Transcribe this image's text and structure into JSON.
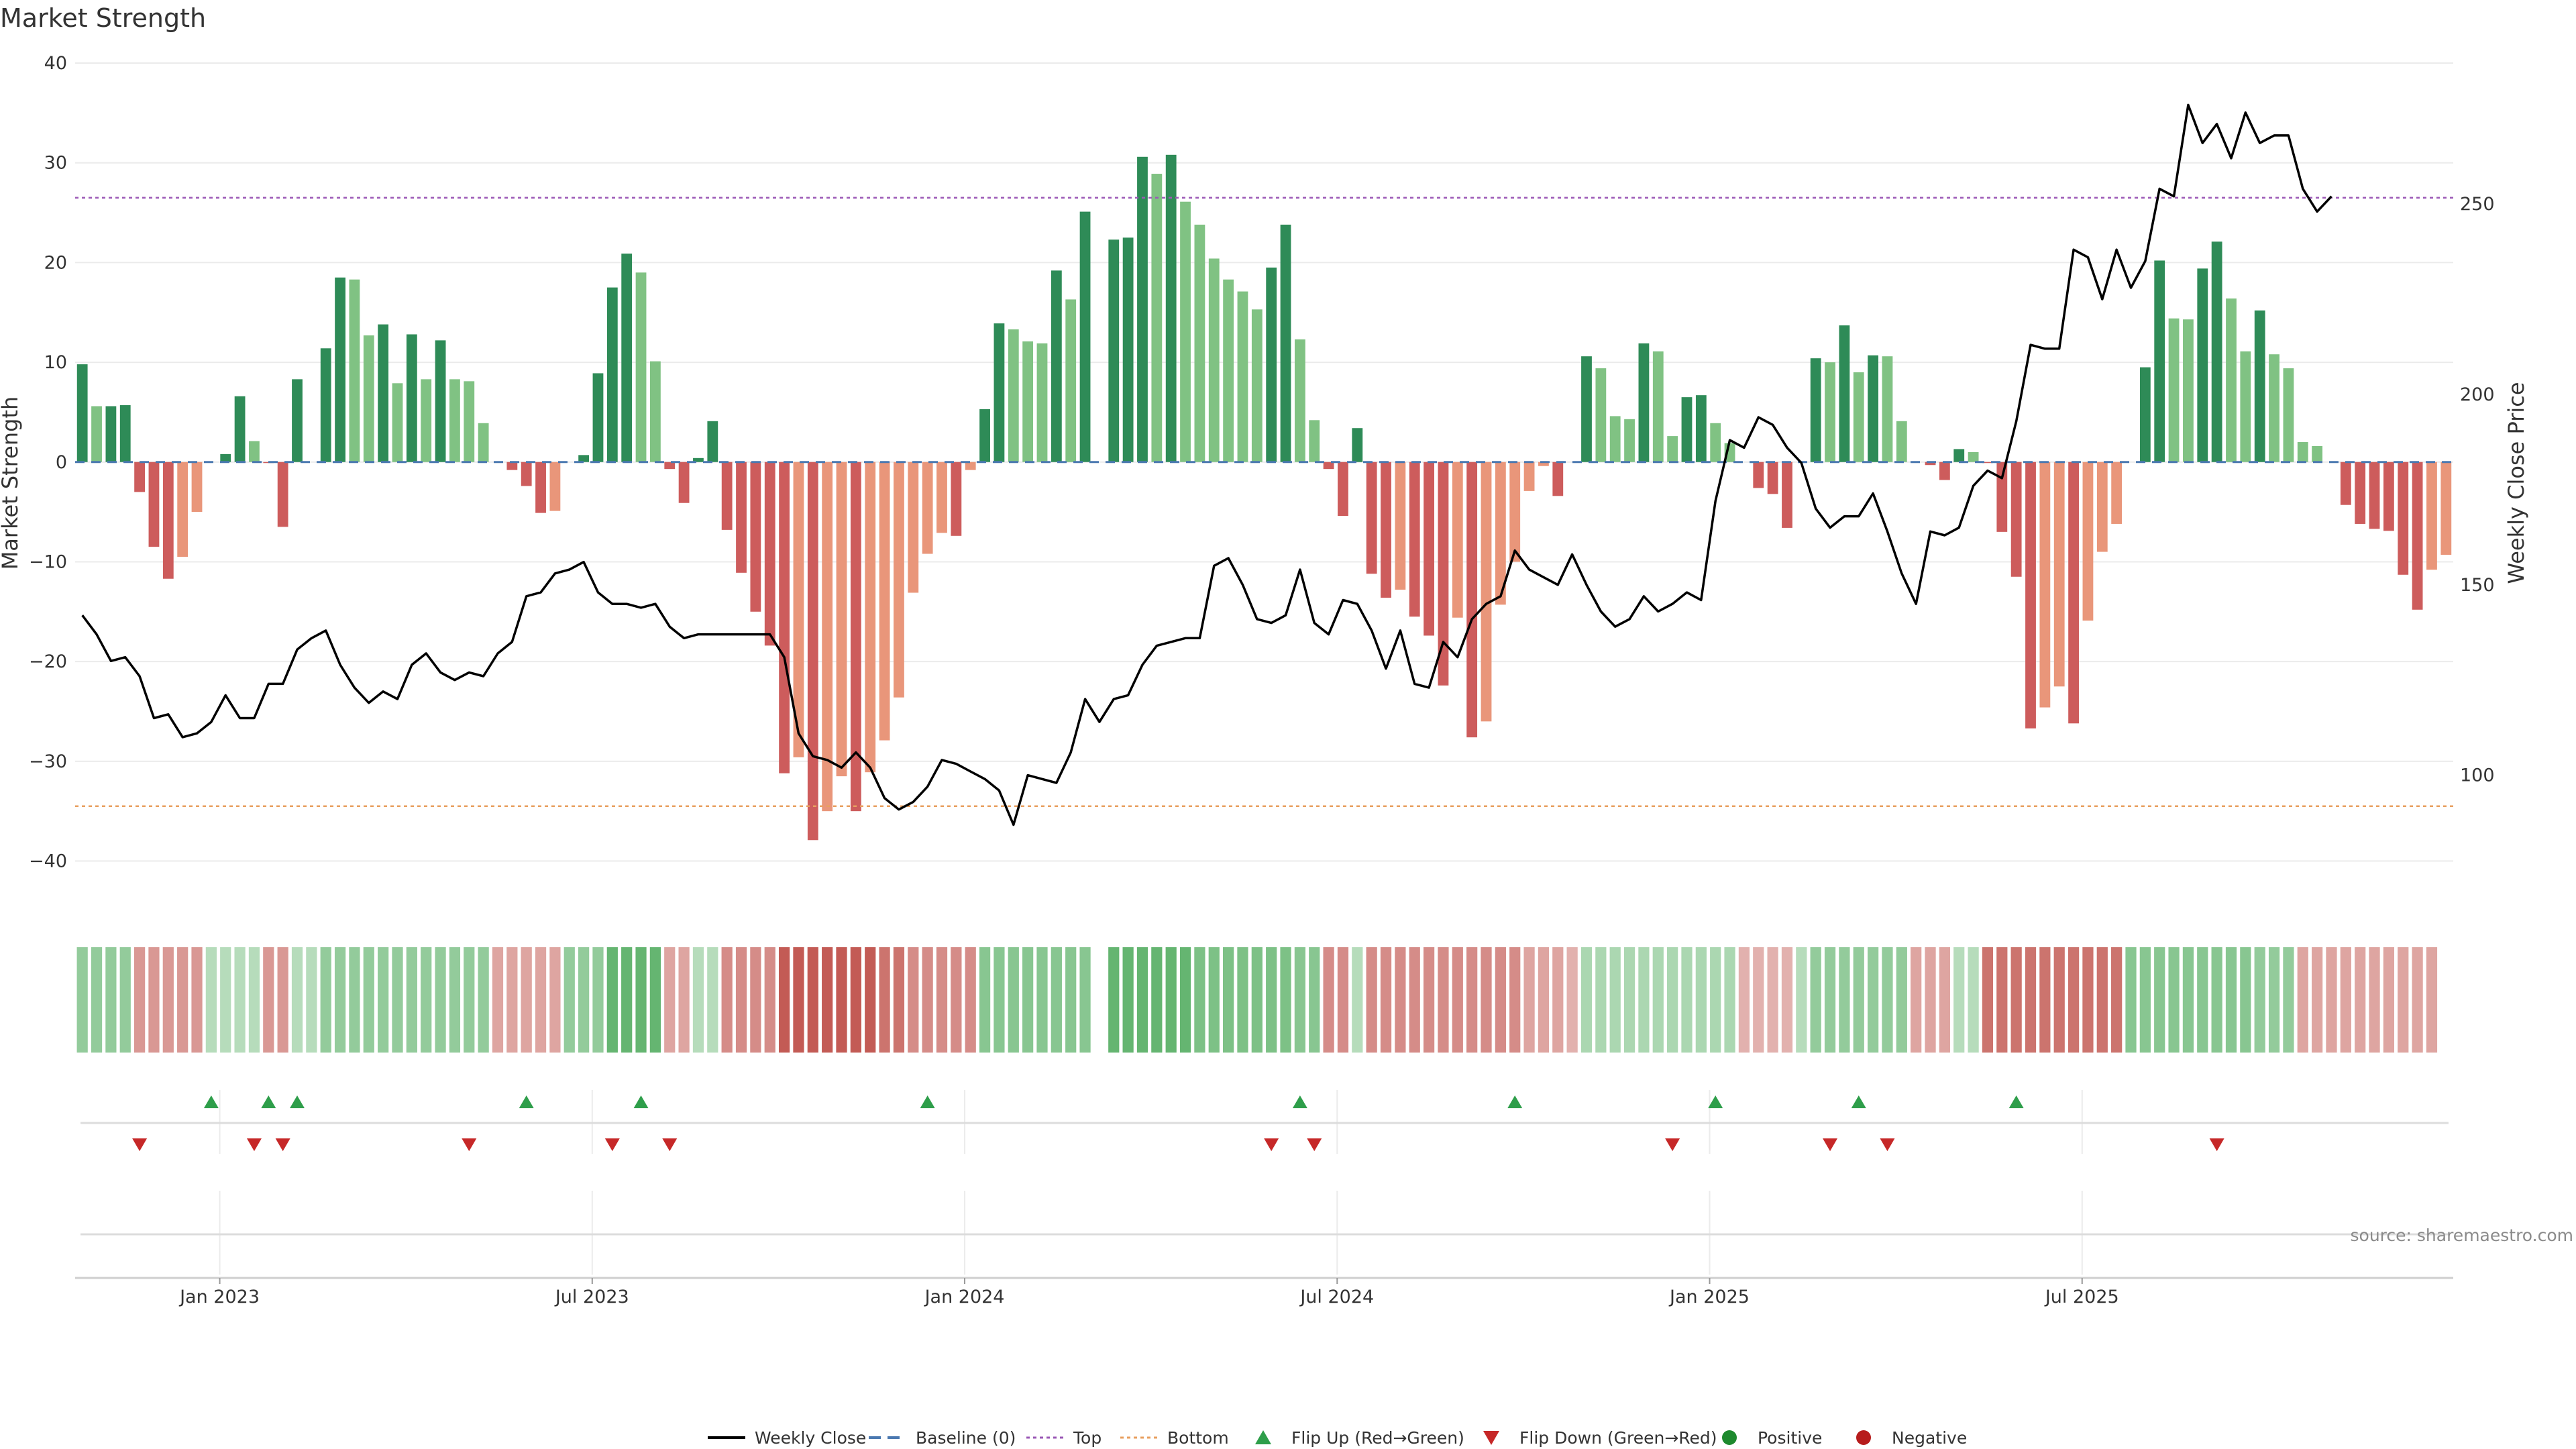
{
  "chart_data": {
    "type": "bar",
    "title": "Market Strength",
    "ylabel": "Market Strength",
    "y2label": "Weekly Close Price",
    "ylim": [
      -44,
      40
    ],
    "y2lim": [
      67,
      287
    ],
    "yticks": [
      40,
      30,
      20,
      10,
      0,
      -10,
      -20,
      -30,
      -40
    ],
    "y2ticks": [
      250,
      200,
      150,
      100
    ],
    "top_level": 26.5,
    "bottom_level": -34.5,
    "x_labels": [
      "Jan 2023",
      "Jul 2023",
      "Jan 2024",
      "Jul 2024",
      "Jan 2025",
      "Jul 2025"
    ],
    "x_label_weeks": [
      10,
      36,
      62,
      88,
      114,
      140
    ],
    "series": [
      {
        "name": "Market Strength",
        "values": [
          9.8,
          5.6,
          5.6,
          5.7,
          -3,
          -8.5,
          -11.7,
          -9.5,
          -5,
          0,
          0.8,
          6.6,
          2.1,
          -0.1,
          -6.5,
          8.3,
          0,
          11.4,
          18.5,
          18.3,
          12.7,
          13.8,
          7.9,
          12.8,
          8.3,
          12.2,
          8.3,
          8.1,
          3.9,
          0,
          -0.8,
          -2.4,
          -5.1,
          -4.9,
          0,
          0.7,
          8.9,
          17.5,
          20.9,
          19,
          10.1,
          -0.7,
          -4.1,
          0.4,
          4.1,
          -6.8,
          -11.1,
          -15,
          -18.4,
          -31.2,
          -29.6,
          -37.9,
          -35,
          -31.5,
          -35,
          -31.1,
          -27.9,
          -23.6,
          -13.1,
          -9.2,
          -7.1,
          -7.4,
          -0.8,
          5.3,
          13.9,
          13.3,
          12.1,
          11.9,
          19.2,
          16.3,
          25.1,
          0,
          22.3,
          22.5,
          30.6,
          28.9,
          30.8,
          26.1,
          23.8,
          20.4,
          18.3,
          17.1,
          15.3,
          19.5,
          23.8,
          12.3,
          4.2,
          -0.7,
          -5.4,
          3.4,
          -11.2,
          -13.6,
          -12.8,
          -15.5,
          -17.4,
          -22.4,
          -15.6,
          -27.6,
          -26,
          -14.3,
          -10,
          -2.9,
          -0.4,
          -3.4,
          0,
          10.6,
          9.4,
          4.6,
          4.3,
          11.9,
          11.1,
          2.6,
          6.5,
          6.7,
          3.9,
          1.9,
          0,
          -2.6,
          -3.2,
          -6.6,
          0,
          10.4,
          10,
          13.7,
          9,
          10.7,
          10.6,
          4.1,
          0,
          -0.3,
          -1.8,
          1.3,
          1,
          -0.1,
          -7,
          -11.5,
          -26.7,
          -24.6,
          -22.5,
          -26.2,
          -15.9,
          -9,
          -6.2,
          0,
          9.5,
          20.2,
          14.4,
          14.3,
          19.4,
          22.1,
          16.4,
          11.1,
          15.2,
          10.8,
          9.4,
          2,
          1.6,
          0,
          -4.3,
          -6.2,
          -6.7,
          -6.9,
          -11.3,
          -14.8,
          -10.8,
          -9.3
        ]
      },
      {
        "name": "Weekly Close",
        "axis": "secondary",
        "values": [
          142,
          137,
          130,
          131,
          126,
          115,
          116,
          110,
          111,
          114,
          121,
          115,
          115,
          124,
          124,
          133,
          136,
          138,
          129,
          123,
          119,
          122,
          120,
          129,
          132,
          127,
          125,
          127,
          126,
          132,
          135,
          147,
          148,
          153,
          154,
          156,
          148,
          145,
          145,
          144,
          145,
          139,
          136,
          137,
          137,
          137,
          137,
          137,
          137,
          131,
          111,
          105,
          104,
          102,
          106,
          102,
          94,
          91,
          93,
          97,
          104,
          103,
          101,
          99,
          96,
          87,
          100,
          99,
          98,
          106,
          120,
          114,
          120,
          121,
          129,
          134,
          135,
          136,
          136,
          155,
          157,
          150,
          141,
          140,
          142,
          154,
          140,
          137,
          146,
          145,
          138,
          128,
          138,
          124,
          123,
          135,
          131,
          141,
          145,
          147,
          159,
          154,
          152,
          150,
          158,
          150,
          143,
          139,
          141,
          147,
          143,
          145,
          148,
          146,
          172,
          188,
          186,
          194,
          192,
          186,
          182,
          170,
          165,
          168,
          168,
          174,
          164,
          153,
          145,
          164,
          163,
          165,
          176,
          180,
          178,
          193,
          213,
          212,
          212,
          238,
          236,
          225,
          238,
          228,
          235,
          254,
          252,
          276,
          266,
          271,
          262,
          274,
          266,
          268,
          268,
          254,
          248,
          252
        ]
      }
    ],
    "strength_strip": [
      0.6,
      0.6,
      0.6,
      0.6,
      -0.5,
      -0.5,
      -0.5,
      -0.5,
      -0.5,
      0.3,
      0.3,
      0.3,
      0.3,
      -0.5,
      -0.5,
      0.3,
      0.3,
      0.6,
      0.6,
      0.6,
      0.6,
      0.6,
      0.6,
      0.6,
      0.6,
      0.6,
      0.6,
      0.6,
      0.6,
      -0.4,
      -0.4,
      -0.4,
      -0.4,
      -0.4,
      0.6,
      0.6,
      0.6,
      1,
      1,
      1,
      1,
      -0.4,
      -0.4,
      0.3,
      0.3,
      -0.6,
      -0.6,
      -0.6,
      -0.6,
      -1,
      -1,
      -1,
      -1,
      -1,
      -1,
      -1,
      -0.8,
      -0.8,
      -0.6,
      -0.6,
      -0.6,
      -0.6,
      -0.6,
      0.7,
      0.7,
      0.7,
      0.7,
      0.7,
      0.7,
      0.7,
      0.7,
      0,
      1,
      1,
      1,
      1,
      1,
      1,
      0.8,
      0.8,
      0.8,
      0.8,
      0.8,
      0.8,
      0.8,
      0.7,
      0.7,
      -0.6,
      -0.6,
      0.3,
      -0.6,
      -0.6,
      -0.6,
      -0.6,
      -0.6,
      -0.6,
      -0.6,
      -0.6,
      -0.6,
      -0.6,
      -0.6,
      -0.4,
      -0.4,
      -0.4,
      -0.3,
      0.4,
      0.4,
      0.4,
      0.4,
      0.4,
      0.4,
      0.4,
      0.4,
      0.4,
      0.4,
      0.4,
      -0.3,
      -0.3,
      -0.3,
      -0.3,
      0.3,
      0.6,
      0.6,
      0.6,
      0.6,
      0.6,
      0.6,
      0.6,
      -0.4,
      -0.4,
      -0.4,
      0.3,
      0.3,
      -0.8,
      -0.8,
      -0.8,
      -0.8,
      -0.8,
      -0.8,
      -0.8,
      -0.8,
      -0.8,
      -0.8,
      0.7,
      0.7,
      0.7,
      0.7,
      0.7,
      0.7,
      0.7,
      0.7,
      0.7,
      0.6,
      0.6,
      0.6,
      -0.4,
      -0.4,
      -0.4,
      -0.4,
      -0.4,
      -0.4,
      -0.4,
      -0.4,
      -0.4,
      -0.4
    ],
    "flip_up_weeks": [
      9,
      13,
      15,
      31,
      39,
      59,
      85,
      100,
      114,
      124,
      135
    ],
    "flip_down_weeks": [
      4,
      12,
      14,
      27,
      37,
      41,
      83,
      86,
      111,
      122,
      126,
      149
    ],
    "source": "source: sharemaestro.com",
    "legend": [
      {
        "label": "Weekly Close",
        "kind": "line",
        "color": "#000000"
      },
      {
        "label": "Baseline (0)",
        "kind": "dash",
        "color": "#4a78b0"
      },
      {
        "label": "Top",
        "kind": "dot",
        "color": "#9b59b6"
      },
      {
        "label": "Bottom",
        "kind": "dot",
        "color": "#e8a060"
      },
      {
        "label": "Flip Up (Red→Green)",
        "kind": "tri-up",
        "color": "#2e9e4a"
      },
      {
        "label": "Flip Down (Green→Red)",
        "kind": "tri-down",
        "color": "#c62828"
      },
      {
        "label": "Positive",
        "kind": "dot-circle",
        "color": "#1e8a2e"
      },
      {
        "label": "Negative",
        "kind": "dot-circle",
        "color": "#b71c1c"
      }
    ],
    "colors": {
      "pos_strong": "#2e8b57",
      "pos_weak": "#80c283",
      "neg_strong": "#cd5c5c",
      "neg_weak": "#e9967a",
      "grid": "#ebebeb"
    }
  }
}
